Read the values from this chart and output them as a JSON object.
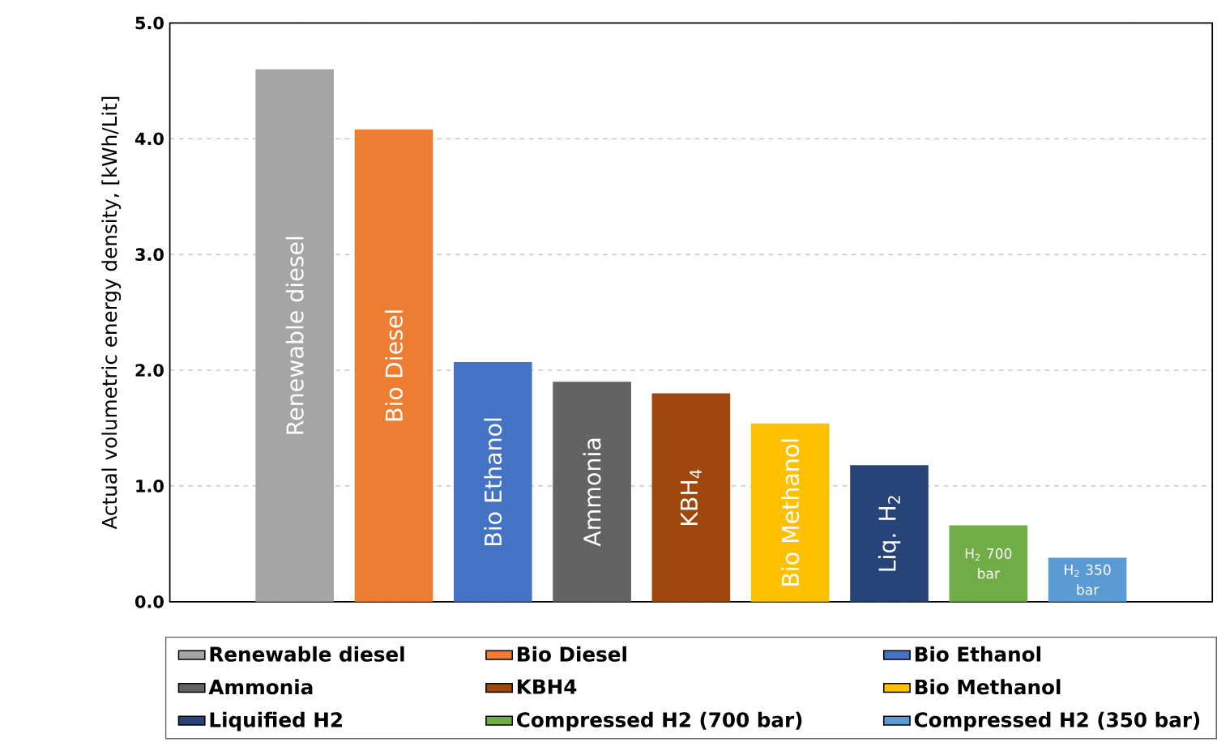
{
  "chart_data": {
    "type": "bar",
    "ylabel": "Actual volumetric energy density, [kWh/Lit]",
    "categories": [
      "Renewable diesel",
      "Bio Diesel",
      "Bio Ethanol",
      "Ammonia",
      "KBH$_{4}$",
      "Bio Methanol",
      "Liq. H$_{2}$",
      "H$_{2}$ 700 bar",
      "H$_{2}$ 350 bar"
    ],
    "series": [
      {
        "name": "Renewable diesel",
        "color": "#a5a5a5",
        "values": [
          4.6,
          null,
          null,
          null,
          null,
          null,
          null,
          null,
          null
        ]
      },
      {
        "name": "Bio Diesel",
        "color": "#ed7d31",
        "values": [
          null,
          4.08,
          null,
          null,
          null,
          null,
          null,
          null,
          null
        ]
      },
      {
        "name": "Bio Ethanol",
        "color": "#4472c4",
        "values": [
          null,
          null,
          2.07,
          null,
          null,
          null,
          null,
          null,
          null
        ]
      },
      {
        "name": "Ammonia",
        "color": "#636363",
        "values": [
          null,
          null,
          null,
          1.9,
          null,
          null,
          null,
          null,
          null
        ]
      },
      {
        "name": "KBH4",
        "color": "#9e480e",
        "values": [
          null,
          null,
          null,
          null,
          1.8,
          null,
          null,
          null,
          null
        ]
      },
      {
        "name": "Bio Methanol",
        "color": "#ffc000",
        "values": [
          null,
          null,
          null,
          null,
          null,
          1.54,
          null,
          null,
          null
        ]
      },
      {
        "name": "Liquified H2",
        "color": "#264478",
        "values": [
          null,
          null,
          null,
          null,
          null,
          null,
          1.18,
          null,
          null
        ]
      },
      {
        "name": "Compressed H2 (700 bar)",
        "color": "#70ad47",
        "values": [
          null,
          null,
          null,
          null,
          null,
          null,
          null,
          0.66,
          null
        ]
      },
      {
        "name": "Compressed H2 (350 bar)",
        "color": "#5b9bd5",
        "values": [
          null,
          null,
          null,
          null,
          null,
          null,
          null,
          null,
          0.38
        ]
      }
    ],
    "ylim": [
      0,
      5
    ],
    "yticks": [
      {
        "value": 0,
        "label": "0.0"
      },
      {
        "value": 1,
        "label": "1.0"
      },
      {
        "value": 2,
        "label": "2.0"
      },
      {
        "value": 3,
        "label": "3.0"
      },
      {
        "value": 4,
        "label": "4.0"
      },
      {
        "value": 5,
        "label": "5.0"
      }
    ],
    "grid": "y",
    "legend": "bottom"
  }
}
